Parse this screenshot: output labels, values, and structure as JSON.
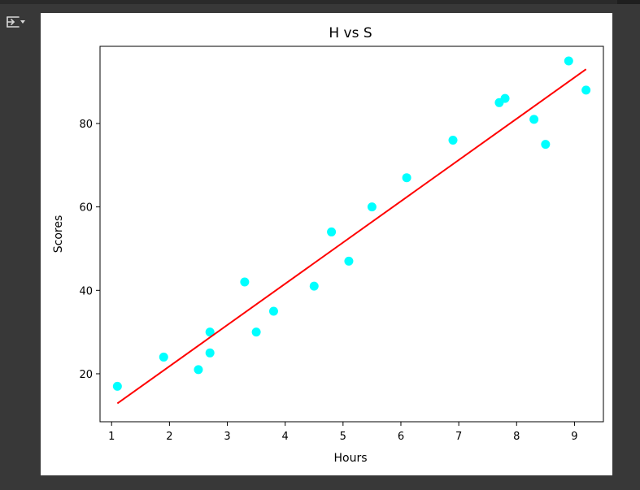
{
  "toolbar": {
    "output_toggle_icon": "output-collapse-icon"
  },
  "chart_data": {
    "type": "scatter",
    "title": "H vs S",
    "xlabel": "Hours",
    "ylabel": "Scores",
    "xlim": [
      0.8,
      9.5
    ],
    "ylim": [
      8.5,
      98.5
    ],
    "xticks": [
      1,
      2,
      3,
      4,
      5,
      6,
      7,
      8,
      9
    ],
    "yticks": [
      20,
      40,
      60,
      80
    ],
    "points": [
      {
        "x": 1.1,
        "y": 17
      },
      {
        "x": 1.9,
        "y": 24
      },
      {
        "x": 2.5,
        "y": 21
      },
      {
        "x": 2.7,
        "y": 25
      },
      {
        "x": 2.7,
        "y": 30
      },
      {
        "x": 3.3,
        "y": 42
      },
      {
        "x": 3.5,
        "y": 30
      },
      {
        "x": 3.8,
        "y": 35
      },
      {
        "x": 4.5,
        "y": 41
      },
      {
        "x": 4.8,
        "y": 54
      },
      {
        "x": 5.1,
        "y": 47
      },
      {
        "x": 5.5,
        "y": 60
      },
      {
        "x": 6.1,
        "y": 67
      },
      {
        "x": 6.9,
        "y": 76
      },
      {
        "x": 7.7,
        "y": 85
      },
      {
        "x": 7.8,
        "y": 86
      },
      {
        "x": 8.3,
        "y": 81
      },
      {
        "x": 8.5,
        "y": 75
      },
      {
        "x": 8.9,
        "y": 95
      },
      {
        "x": 9.2,
        "y": 88
      }
    ],
    "regression_line": {
      "x": [
        1.1,
        9.2
      ],
      "y": [
        12.9,
        93.0
      ]
    },
    "colors": {
      "points": "#00ffff",
      "line": "#ff0000"
    },
    "grid": false
  }
}
